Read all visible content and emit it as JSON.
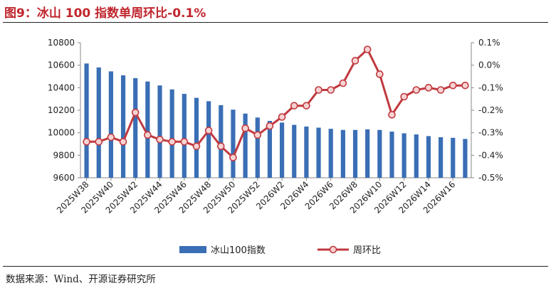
{
  "title": "图9：冰山 100 指数单周环比-0.1%",
  "source": "数据来源：Wind、开源证券研究所",
  "chart_data": {
    "type": "bar",
    "title": "图9：冰山 100 指数单周环比-0.1%",
    "categories": [
      "2025W38",
      "2025W39",
      "2025W40",
      "2025W41",
      "2025W42",
      "2025W43",
      "2025W44",
      "2025W45",
      "2025W46",
      "2025W47",
      "2025W48",
      "2025W49",
      "2025W50",
      "2025W51",
      "2025W52",
      "2026W1",
      "2026W2",
      "2026W3",
      "2026W4",
      "2026W5",
      "2026W6",
      "2026W7",
      "2026W8",
      "2026W9",
      "2026W10",
      "2026W11",
      "2026W12",
      "2026W13",
      "2026W14",
      "2026W15",
      "2026W16",
      "2026W17"
    ],
    "x_tick_labels": [
      "2025W38",
      "2025W40",
      "2025W42",
      "2025W44",
      "2025W46",
      "2025W48",
      "2025W50",
      "2025W52",
      "2026W2",
      "2026W4",
      "2026W6",
      "2026W8",
      "2026W10",
      "2026W12",
      "2026W14",
      "2026W16"
    ],
    "series": [
      {
        "name": "冰山100指数",
        "type": "bar",
        "axis": "left",
        "color": "#3A6EB5",
        "values": [
          10615,
          10580,
          10545,
          10510,
          10485,
          10455,
          10420,
          10385,
          10345,
          10310,
          10280,
          10245,
          10205,
          10170,
          10135,
          10105,
          10090,
          10070,
          10055,
          10045,
          10035,
          10025,
          10025,
          10030,
          10025,
          10010,
          9995,
          9985,
          9970,
          9960,
          9955,
          9945
        ]
      },
      {
        "name": "周环比",
        "type": "line",
        "axis": "right",
        "unit": "%",
        "color": "#C0393F",
        "values": [
          -0.34,
          -0.34,
          -0.32,
          -0.34,
          -0.21,
          -0.31,
          -0.33,
          -0.34,
          -0.34,
          -0.36,
          -0.29,
          -0.36,
          -0.41,
          -0.28,
          -0.31,
          -0.27,
          -0.23,
          -0.18,
          -0.18,
          -0.11,
          -0.11,
          -0.08,
          0.02,
          0.07,
          -0.04,
          -0.22,
          -0.14,
          -0.11,
          -0.1,
          -0.11,
          -0.09,
          -0.09
        ]
      }
    ],
    "ylim": [
      9600,
      10800
    ],
    "yticks": [
      "10800",
      "10600",
      "10400",
      "10200",
      "10000",
      "9800",
      "9600"
    ],
    "y2lim": [
      -0.5,
      0.1
    ],
    "y2ticks": [
      "0.1%",
      "0.0%",
      "-0.1%",
      "-0.2%",
      "-0.3%",
      "-0.4%",
      "-0.5%"
    ],
    "grid": false,
    "legend_position": "bottom"
  }
}
